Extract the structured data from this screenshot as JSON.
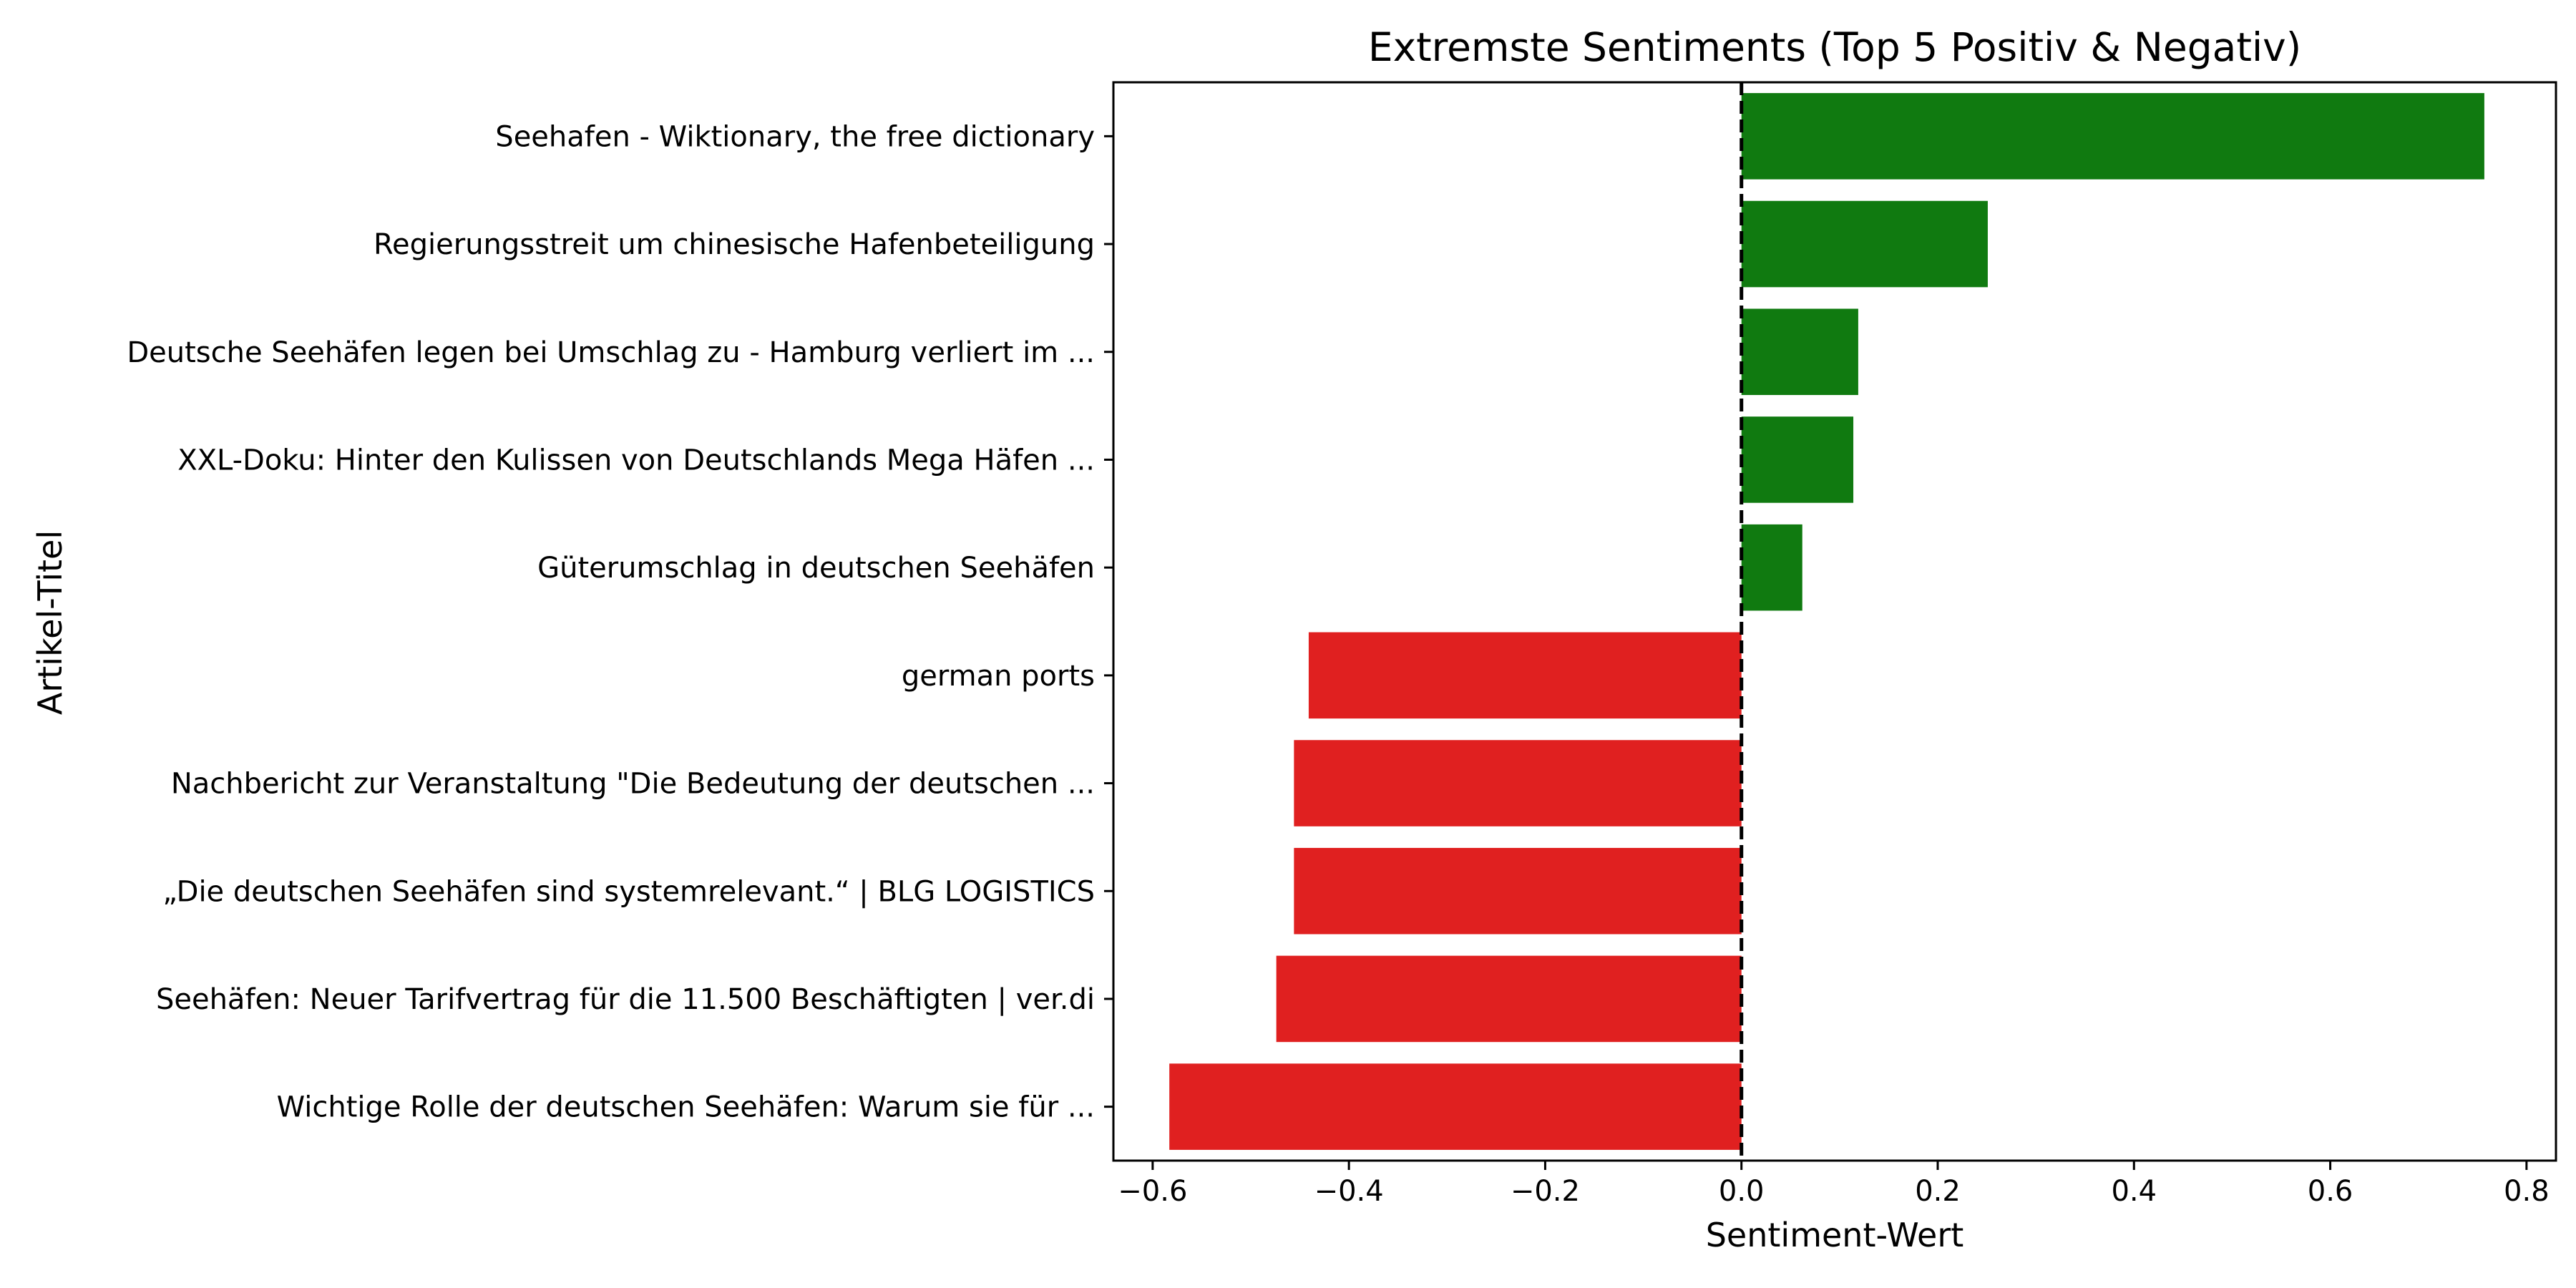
{
  "chart_data": {
    "type": "bar",
    "orientation": "horizontal",
    "title": "Extremste Sentiments (Top 5 Positiv & Negativ)",
    "xlabel": "Sentiment-Wert",
    "ylabel": "Artikel-Titel",
    "xlim": [
      -0.64,
      0.83
    ],
    "xticks": [
      -0.6,
      -0.4,
      -0.2,
      0.0,
      0.2,
      0.4,
      0.6,
      0.8
    ],
    "xtick_labels": [
      "−0.6",
      "−0.4",
      "−0.2",
      "0.0",
      "0.2",
      "0.4",
      "0.6",
      "0.8"
    ],
    "reference_line": {
      "x": 0,
      "style": "dashed",
      "color": "#000000"
    },
    "grid": false,
    "categories": [
      "Seehafen - Wiktionary, the free dictionary",
      "Regierungsstreit um chinesische Hafenbeteiligung",
      "Deutsche Seehäfen legen bei Umschlag zu - Hamburg verliert im ...",
      "XXL-Doku: Hinter den Kulissen von Deutschlands Mega Häfen ...",
      "Güterumschlag in deutschen Seehäfen",
      "german ports",
      "Nachbericht zur Veranstaltung \"Die Bedeutung der deutschen ...",
      "„Die deutschen Seehäfen sind systemrelevant.“ | BLG LOGISTICS",
      "Seehäfen: Neuer Tarifvertrag für die 11.500 Beschäftigten | ver.di",
      "Wichtige Rolle der deutschen Seehäfen: Warum sie für ..."
    ],
    "values": [
      0.757,
      0.251,
      0.119,
      0.114,
      0.062,
      -0.441,
      -0.456,
      -0.456,
      -0.474,
      -0.583
    ],
    "colors": {
      "positive": "#107a10",
      "negative": "#e02020"
    }
  }
}
